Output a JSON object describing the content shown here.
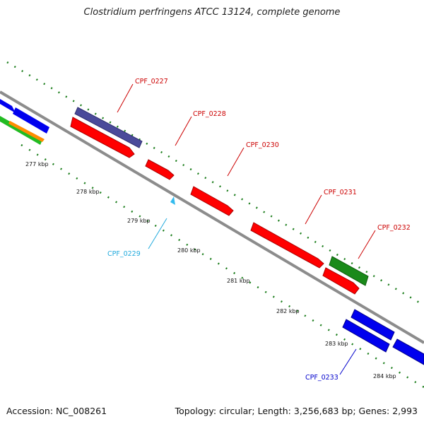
{
  "title": "Clostridium perfringens ATCC 13124, complete genome",
  "accession": "Accession: NC_008261",
  "summary": "Topology: circular; Length: 3,256,683 bp; Genes: 2,993",
  "colors": {
    "forward_cds": "#ff0000",
    "reverse_cds": "#0000ff",
    "highlight_cds": "#1a8a1a",
    "purple_cds": "#4a4a9a",
    "orange_cds": "#ff8c00",
    "rna_marker": "#33bbee",
    "backbone": "#8c8c8c",
    "ticks": "#1e7f1e"
  },
  "kbp_labels": [
    "277 kbp",
    "278 kbp",
    "279 kbp",
    "280 kbp",
    "281 kbp",
    "282 kbp",
    "283 kbp",
    "284 kbp"
  ],
  "genes": [
    {
      "id": "CPF_0227",
      "color": "#cc0000"
    },
    {
      "id": "CPF_0228",
      "color": "#cc0000"
    },
    {
      "id": "CPF_0229",
      "color": "#22aadd"
    },
    {
      "id": "CPF_0230",
      "color": "#cc0000"
    },
    {
      "id": "CPF_0231",
      "color": "#cc0000"
    },
    {
      "id": "CPF_0232",
      "color": "#cc0000"
    },
    {
      "id": "CPF_0233",
      "color": "#0000cc"
    }
  ]
}
